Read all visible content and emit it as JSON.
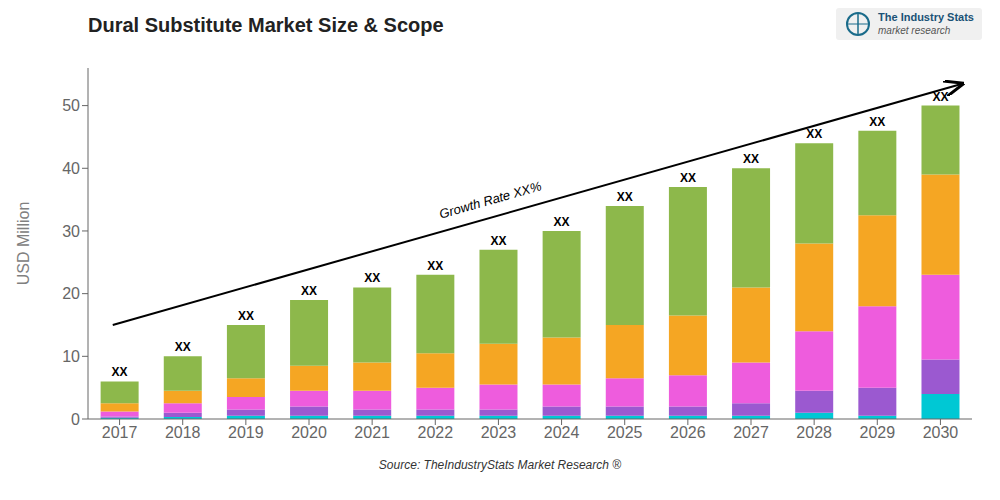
{
  "chart_data": {
    "type": "bar",
    "title": "Dural Substitute Market Size & Scope",
    "ylabel": "USD Million",
    "categories": [
      2017,
      2018,
      2019,
      2020,
      2021,
      2022,
      2023,
      2024,
      2025,
      2026,
      2027,
      2028,
      2029,
      2030
    ],
    "series": [
      {
        "color": "#00c8d4",
        "values": [
          0.2,
          0.3,
          0.5,
          0.5,
          0.5,
          0.5,
          0.5,
          0.5,
          0.5,
          0.5,
          0.5,
          1.0,
          0.5,
          4.0
        ]
      },
      {
        "color": "#9b59d0",
        "values": [
          0.2,
          0.7,
          1.0,
          1.5,
          1.0,
          1.0,
          1.0,
          1.5,
          1.5,
          1.5,
          2.0,
          3.5,
          4.5,
          5.5
        ]
      },
      {
        "color": "#ee5cdd",
        "values": [
          0.8,
          1.5,
          2.0,
          2.5,
          3.0,
          3.5,
          4.0,
          3.5,
          4.5,
          5.0,
          6.5,
          9.5,
          13.0,
          13.5
        ]
      },
      {
        "color": "#f5a623",
        "values": [
          1.3,
          2.0,
          3.0,
          4.0,
          4.5,
          5.5,
          6.5,
          7.5,
          8.5,
          9.5,
          12.0,
          14.0,
          14.5,
          16.0
        ]
      },
      {
        "color": "#8db84b",
        "values": [
          3.5,
          5.5,
          8.5,
          10.5,
          12.0,
          12.5,
          15.0,
          17.0,
          19.0,
          20.5,
          19.0,
          16.0,
          13.5,
          11.0
        ]
      }
    ],
    "stacked": true,
    "ylim": [
      0,
      56
    ],
    "yticks": [
      0,
      10,
      20,
      30,
      40,
      50
    ],
    "grid": false,
    "annotations": [
      {
        "type": "bar_top",
        "text": "XX"
      },
      {
        "type": "arrow",
        "text": "Growth Rate XX%"
      },
      {
        "type": "source",
        "text": "Source: TheIndustryStats Market Research ®"
      },
      {
        "type": "logo",
        "text": "The Industry Stats"
      },
      {
        "type": "logo_subtitle",
        "text": "market research"
      }
    ]
  }
}
